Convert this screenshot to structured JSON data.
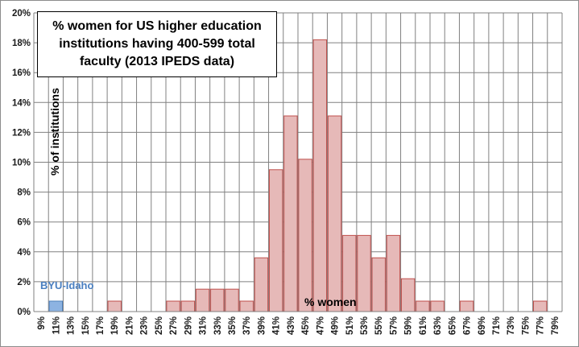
{
  "chart_data": {
    "type": "bar",
    "title": "% women for US higher education institutions having 400-599 total faculty (2013 IPEDS data)",
    "xlabel": "% women",
    "ylabel": "% of institutions",
    "ylim": [
      0,
      20
    ],
    "y_ticks": [
      "0%",
      "2%",
      "4%",
      "6%",
      "8%",
      "10%",
      "12%",
      "14%",
      "16%",
      "18%",
      "20%"
    ],
    "grid": true,
    "categories": [
      "9%",
      "11%",
      "13%",
      "15%",
      "17%",
      "19%",
      "21%",
      "23%",
      "25%",
      "27%",
      "29%",
      "31%",
      "33%",
      "35%",
      "37%",
      "39%",
      "41%",
      "43%",
      "45%",
      "47%",
      "49%",
      "51%",
      "53%",
      "55%",
      "57%",
      "59%",
      "61%",
      "63%",
      "65%",
      "67%",
      "69%",
      "71%",
      "73%",
      "75%",
      "77%",
      "79%"
    ],
    "values": [
      0,
      0.7,
      0,
      0,
      0,
      0.7,
      0,
      0,
      0,
      0.7,
      0.7,
      1.5,
      1.5,
      1.5,
      0.7,
      3.6,
      9.5,
      13.1,
      10.2,
      18.2,
      13.1,
      5.1,
      5.1,
      3.6,
      5.1,
      2.2,
      0.7,
      0.7,
      0,
      0.7,
      0,
      0,
      0,
      0,
      0.7,
      0
    ],
    "highlight_index": 1,
    "annotation": "BYU-Idaho",
    "colors": {
      "bar_fill": "#e6b9b8",
      "bar_stroke": "#c0504d",
      "highlight_fill": "#8db3e2",
      "highlight_stroke": "#4f81bd",
      "grid": "#808080",
      "annotation": "#4a7fc0"
    }
  }
}
